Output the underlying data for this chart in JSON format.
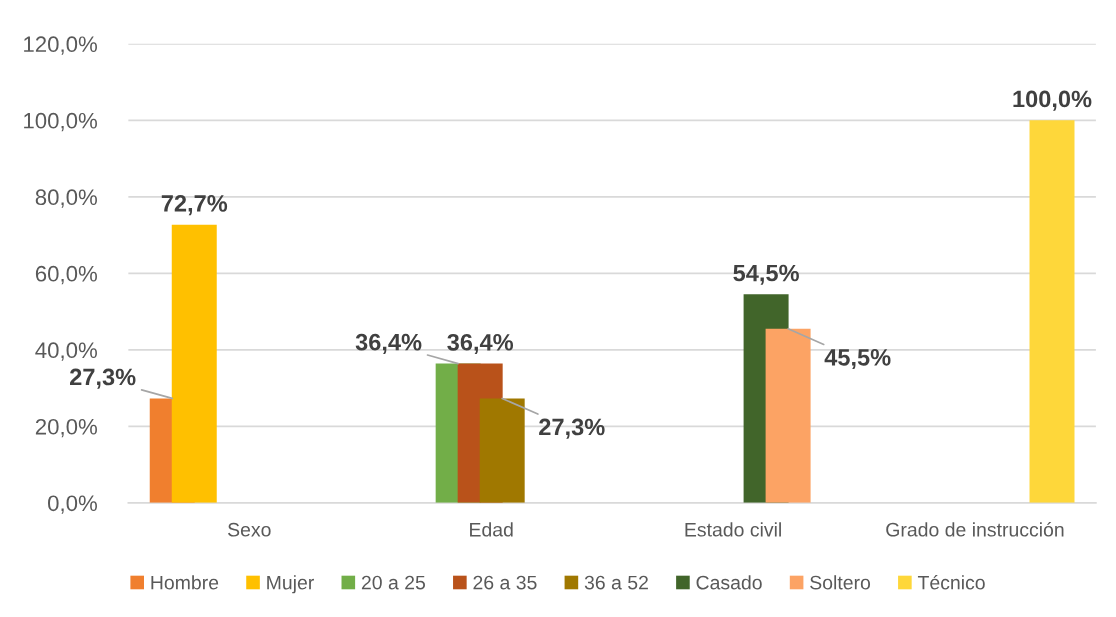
{
  "chart_data": {
    "type": "bar",
    "categories": [
      "Sexo",
      "Edad",
      "Estado civil",
      "Grado de instrucción"
    ],
    "series": [
      {
        "name": "Hombre",
        "color": "#f07f2e",
        "values": [
          27.3,
          null,
          null,
          null
        ],
        "value_labels": [
          "27,3%",
          null,
          null,
          null
        ]
      },
      {
        "name": "Mujer",
        "color": "#ffc000",
        "values": [
          72.7,
          null,
          null,
          null
        ],
        "value_labels": [
          "72,7%",
          null,
          null,
          null
        ]
      },
      {
        "name": "20 a 25",
        "color": "#72ae48",
        "values": [
          null,
          36.4,
          null,
          null
        ],
        "value_labels": [
          null,
          "36,4%",
          null,
          null
        ]
      },
      {
        "name": "26 a 35",
        "color": "#b9521a",
        "values": [
          null,
          36.4,
          null,
          null
        ],
        "value_labels": [
          null,
          "36,4%",
          null,
          null
        ]
      },
      {
        "name": "36 a 52",
        "color": "#a07800",
        "values": [
          null,
          27.3,
          null,
          null
        ],
        "value_labels": [
          null,
          "27,3%",
          null,
          null
        ]
      },
      {
        "name": "Casado",
        "color": "#41652a",
        "values": [
          null,
          null,
          54.5,
          null
        ],
        "value_labels": [
          null,
          null,
          "54,5%",
          null
        ]
      },
      {
        "name": "Soltero",
        "color": "#fca364",
        "values": [
          null,
          null,
          45.5,
          null
        ],
        "value_labels": [
          null,
          null,
          "45,5%",
          null
        ]
      },
      {
        "name": "Técnico",
        "color": "#fed73a",
        "values": [
          null,
          null,
          null,
          100.0
        ],
        "value_labels": [
          null,
          null,
          null,
          "100,0%"
        ]
      }
    ],
    "ylim": [
      0,
      120
    ],
    "yticks": [
      {
        "value": 0,
        "label": "0,0%"
      },
      {
        "value": 20,
        "label": "20,0%"
      },
      {
        "value": 40,
        "label": "40,0%"
      },
      {
        "value": 60,
        "label": "60,0%"
      },
      {
        "value": 80,
        "label": "80,0%"
      },
      {
        "value": 100,
        "label": "100,0%"
      },
      {
        "value": 120,
        "label": "120,0%"
      }
    ],
    "grid": "y",
    "legend": "bottom"
  }
}
